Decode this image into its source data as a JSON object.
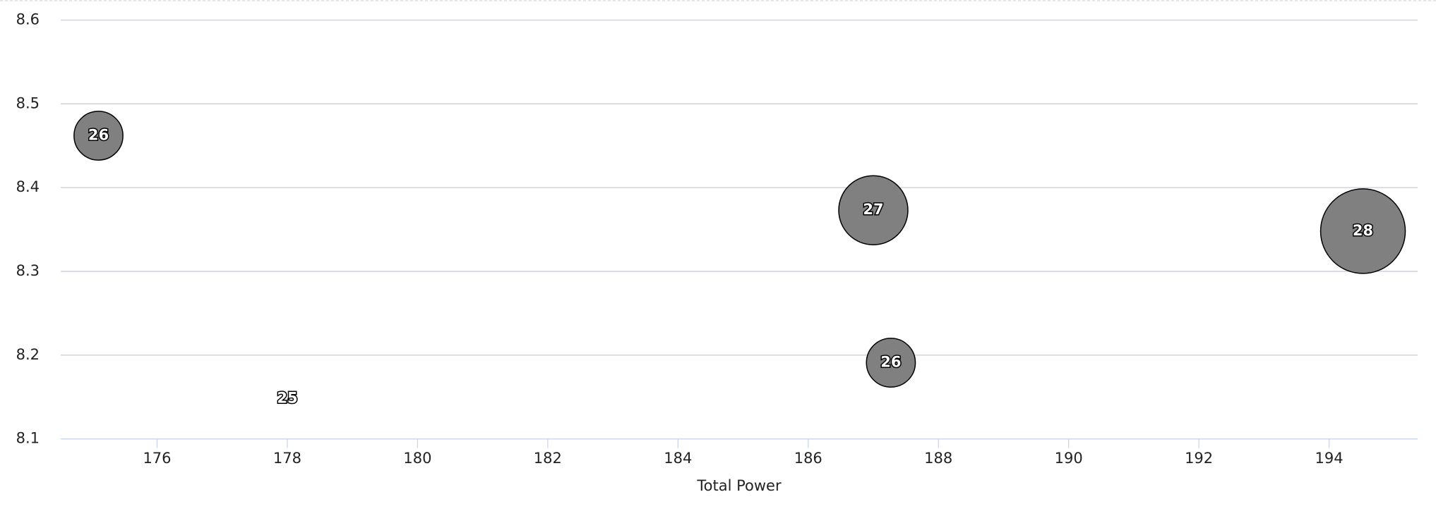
{
  "chart_data": {
    "type": "bubble",
    "x_label": "Total Power",
    "xlim": [
      174.52,
      195.36
    ],
    "xticks": [
      176,
      178,
      180,
      182,
      184,
      186,
      188,
      190,
      192,
      194
    ],
    "ylim": [
      8.1,
      8.6
    ],
    "yticks": [
      8.1,
      8.2,
      8.3,
      8.4,
      8.5,
      8.6
    ],
    "grid": true,
    "series": [
      {
        "color": "#808080",
        "x": [
          175.1,
          178.0,
          187.0,
          187.27,
          194.52
        ],
        "values": [
          8.462,
          8.148,
          8.373,
          8.191,
          8.348
        ],
        "sizes": [
          26,
          25,
          27,
          26,
          28
        ]
      }
    ]
  }
}
